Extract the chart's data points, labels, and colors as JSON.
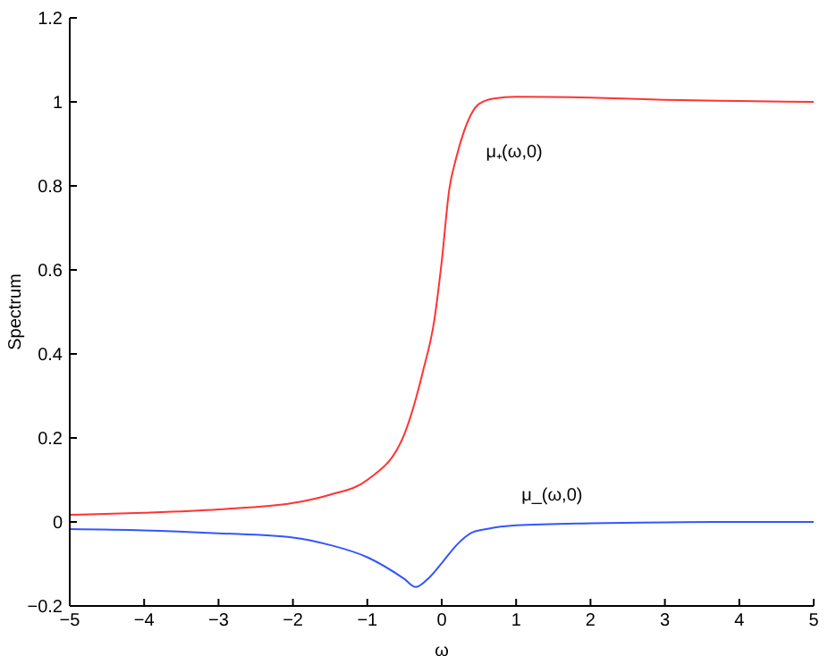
{
  "chart_data": {
    "type": "line",
    "xlabel": "ω",
    "ylabel": "Spectrum",
    "xlim": [
      -5,
      5
    ],
    "xticks": [
      -5,
      -4,
      -3,
      -2,
      -1,
      0,
      1,
      2,
      3,
      4,
      5
    ],
    "ylim": [
      -0.2,
      1.2
    ],
    "yticks": [
      -0.2,
      0,
      0.2,
      0.4,
      0.6,
      0.8,
      1,
      1.2
    ],
    "grid": false,
    "legend": false,
    "marker": "none",
    "line_style": "solid",
    "series": [
      {
        "name": "μ₊(ω,0)",
        "color": "#ff3333",
        "x": [
          -5,
          -4,
          -3,
          -2,
          -1.5,
          -1,
          -0.5,
          -0.25,
          -0.1,
          0,
          0.1,
          0.2,
          0.3,
          0.5,
          0.7,
          1,
          2,
          3,
          4,
          5
        ],
        "values": [
          0.017,
          0.022,
          0.03,
          0.045,
          0.065,
          0.1,
          0.21,
          0.36,
          0.48,
          0.62,
          0.79,
          0.87,
          0.93,
          0.995,
          1.008,
          1.012,
          1.01,
          1.005,
          1.002,
          1.0
        ]
      },
      {
        "name": "μ_(ω,0)",
        "color": "#3355ff",
        "x": [
          -5,
          -4,
          -3,
          -2,
          -1.5,
          -1,
          -0.5,
          -0.35,
          -0.2,
          0,
          0.2,
          0.4,
          0.6,
          1,
          2,
          3,
          4,
          5
        ],
        "values": [
          -0.017,
          -0.02,
          -0.027,
          -0.037,
          -0.055,
          -0.084,
          -0.136,
          -0.155,
          -0.138,
          -0.098,
          -0.055,
          -0.026,
          -0.017,
          -0.008,
          -0.003,
          -0.001,
          0,
          0
        ]
      }
    ]
  }
}
